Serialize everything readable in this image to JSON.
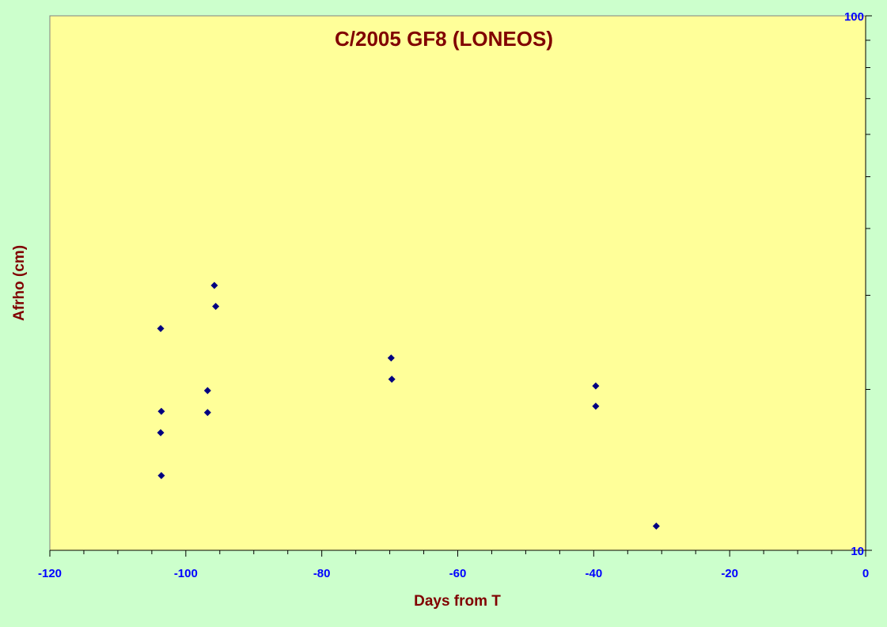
{
  "colors": {
    "page_background": "#ccffcc",
    "plot_background": "#ffff99",
    "title_color": "#800000",
    "tick_label_color": "#0000ff",
    "marker_color": "#000080",
    "axis_color": "#000000"
  },
  "chart_data": {
    "type": "scatter",
    "title": "C/2005 GF8 (LONEOS)",
    "xlabel": "Days from T",
    "ylabel": "Afrho (cm)",
    "xlim": [
      -120,
      0
    ],
    "ylim": [
      10,
      100
    ],
    "yscale": "log",
    "y_axis_side": "right",
    "grid": false,
    "legend": "none",
    "marker": "diamond",
    "x_ticks": [
      -120,
      -100,
      -80,
      -60,
      -40,
      -20,
      0
    ],
    "x_tick_labels": [
      "-120",
      "-100",
      "-80",
      "-60",
      "-40",
      "-20",
      "0"
    ],
    "y_ticks": [
      10,
      100
    ],
    "y_tick_labels": [
      "10",
      "100"
    ],
    "series": [
      {
        "points": [
          {
            "x": -103.7,
            "y": 26.0
          },
          {
            "x": -103.6,
            "y": 18.2
          },
          {
            "x": -103.7,
            "y": 16.6
          },
          {
            "x": -103.6,
            "y": 13.8
          },
          {
            "x": -96.8,
            "y": 19.9
          },
          {
            "x": -96.8,
            "y": 18.1
          },
          {
            "x": -95.8,
            "y": 31.3
          },
          {
            "x": -95.6,
            "y": 28.6
          },
          {
            "x": -69.8,
            "y": 22.9
          },
          {
            "x": -69.7,
            "y": 20.9
          },
          {
            "x": -39.7,
            "y": 20.3
          },
          {
            "x": -39.7,
            "y": 18.6
          },
          {
            "x": -30.8,
            "y": 11.1
          }
        ]
      }
    ]
  }
}
